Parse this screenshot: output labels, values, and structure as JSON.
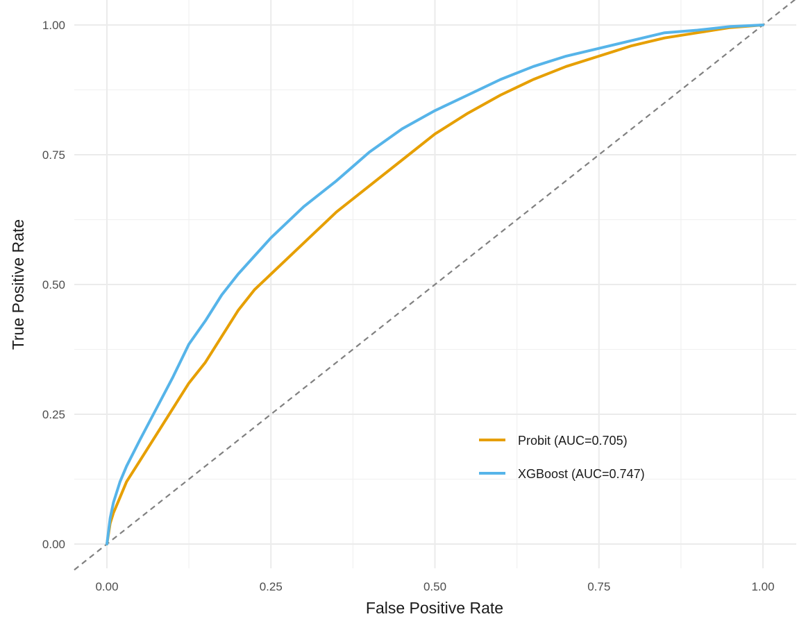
{
  "chart_data": {
    "type": "line",
    "title": "",
    "xlabel": "False Positive Rate",
    "ylabel": "True Positive Rate",
    "xlim": [
      0,
      1
    ],
    "ylim": [
      0,
      1
    ],
    "xticks": [
      "0.00",
      "0.25",
      "0.50",
      "0.75",
      "1.00"
    ],
    "yticks": [
      "0.00",
      "0.25",
      "0.50",
      "0.75",
      "1.00"
    ],
    "grid": true,
    "legend_position": "bottom-right",
    "reference_line": {
      "type": "diagonal",
      "style": "dashed",
      "color": "#808080"
    },
    "series": [
      {
        "name": "Probit (AUC=0.705)",
        "color": "#E69F00",
        "x": [
          0,
          0.005,
          0.01,
          0.02,
          0.03,
          0.05,
          0.075,
          0.1,
          0.125,
          0.15,
          0.175,
          0.2,
          0.225,
          0.25,
          0.3,
          0.35,
          0.4,
          0.45,
          0.5,
          0.55,
          0.6,
          0.65,
          0.7,
          0.75,
          0.8,
          0.85,
          0.9,
          0.95,
          1.0
        ],
        "y": [
          0,
          0.04,
          0.06,
          0.09,
          0.12,
          0.16,
          0.21,
          0.26,
          0.31,
          0.35,
          0.4,
          0.45,
          0.49,
          0.52,
          0.58,
          0.64,
          0.69,
          0.74,
          0.79,
          0.83,
          0.865,
          0.895,
          0.92,
          0.94,
          0.96,
          0.975,
          0.985,
          0.995,
          1.0
        ]
      },
      {
        "name": "XGBoost (AUC=0.747)",
        "color": "#56B4E9",
        "x": [
          0,
          0.005,
          0.01,
          0.02,
          0.03,
          0.05,
          0.075,
          0.1,
          0.125,
          0.15,
          0.175,
          0.2,
          0.225,
          0.25,
          0.3,
          0.35,
          0.4,
          0.45,
          0.5,
          0.55,
          0.6,
          0.65,
          0.7,
          0.75,
          0.8,
          0.85,
          0.9,
          0.95,
          1.0
        ],
        "y": [
          0,
          0.05,
          0.08,
          0.12,
          0.15,
          0.2,
          0.26,
          0.32,
          0.385,
          0.43,
          0.48,
          0.52,
          0.555,
          0.59,
          0.65,
          0.7,
          0.755,
          0.8,
          0.835,
          0.865,
          0.895,
          0.92,
          0.94,
          0.955,
          0.97,
          0.985,
          0.99,
          0.997,
          1.0
        ]
      }
    ]
  }
}
